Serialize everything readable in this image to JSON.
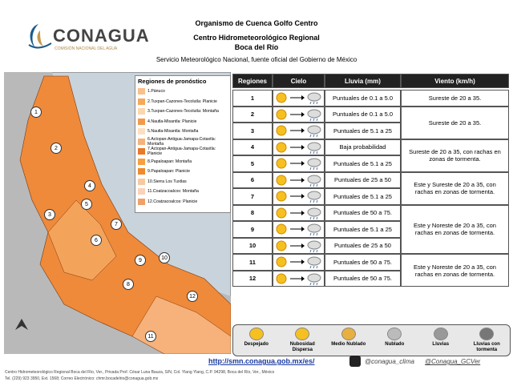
{
  "header": {
    "logo": "CONAGUA",
    "logo_sub": "COMISIÓN NACIONAL DEL AGUA",
    "org": "Organismo de Cuenca Golfo Centro",
    "center": "Centro Hidrometeorológico Regional",
    "place": "Boca del Río",
    "service": "Servicio Meteorológico Nacional, fuente oficial del Gobierno de México"
  },
  "map": {
    "legend_title": "Regiones de pronóstico",
    "legend": [
      {
        "label": "1.Pánuco",
        "color": "#f9c08a"
      },
      {
        "label": "2.Tuxpan-Cazones-Tecolutla: Planicie",
        "color": "#f7a85a"
      },
      {
        "label": "3.Tuxpan-Cazones-Tecolutla: Montaña",
        "color": "#fbd7b0"
      },
      {
        "label": "4.Nautla-Misantla: Planicie",
        "color": "#f39a4a"
      },
      {
        "label": "5.Nautla-Misantla: Montaña",
        "color": "#fce0c4"
      },
      {
        "label": "6.Actopan-Antigua-Jamapa-Cotaxtla: Montaña",
        "color": "#f5b27a"
      },
      {
        "label": "7.Actopan-Antigua-Jamapa-Cotaxtla: Planicie",
        "color": "#e8782a"
      },
      {
        "label": "8.Papaloapan: Montaña",
        "color": "#f6a040"
      },
      {
        "label": "9.Papaloapan: Planicie",
        "color": "#ee8a30"
      },
      {
        "label": "10.Sierra Los Tuxtlas",
        "color": "#f7c9a0"
      },
      {
        "label": "11.Coatzacoalcos: Montaña",
        "color": "#fad2b8"
      },
      {
        "label": "12.Coatzacoalcos: Planicie",
        "color": "#f0a068"
      }
    ],
    "region_labels": [
      "1",
      "2",
      "3",
      "4",
      "5",
      "6",
      "7",
      "8",
      "9",
      "10",
      "11",
      "12"
    ]
  },
  "table": {
    "headers": [
      "Regiones",
      "Cielo",
      "Lluvia (mm)",
      "Viento (km/h)"
    ],
    "rows": [
      {
        "region": "1",
        "rain": "Puntuales de 0.1 a 5.0",
        "wind": "Sureste de 20 a 35."
      },
      {
        "region": "2",
        "rain": "Puntuales de 0.1 a 5.0",
        "wind": "Sureste de 20 a 35."
      },
      {
        "region": "3",
        "rain": "Puntuales de 5.1 a 25",
        "wind": null
      },
      {
        "region": "4",
        "rain": "Baja probabilidad",
        "wind": "Sureste de 20 a 35, con rachas en zonas de tormenta."
      },
      {
        "region": "5",
        "rain": "Puntuales de 5.1 a 25",
        "wind": null
      },
      {
        "region": "6",
        "rain": "Puntuales de 25 a 50",
        "wind": "Este y Sureste de 20 a 35, con rachas en zonas de tormenta."
      },
      {
        "region": "7",
        "rain": "Puntuales de 5.1 a 25",
        "wind": null
      },
      {
        "region": "8",
        "rain": "Puntuales de 50 a 75.",
        "wind": "Este y Noreste de 20 a 35, con rachas en zonas de tormenta."
      },
      {
        "region": "9",
        "rain": "Puntuales de 5.1 a 25",
        "wind": null
      },
      {
        "region": "10",
        "rain": "Puntuales de 25 a 50",
        "wind": null
      },
      {
        "region": "11",
        "rain": "Puntuales de 50 a 75.",
        "wind": "Este y Noreste de 20 a 35, con rachas en zonas de tormenta."
      },
      {
        "region": "12",
        "rain": "Puntuales de 50 a 75.",
        "wind": null
      }
    ]
  },
  "sky_legend": [
    "Despejado",
    "Nubosidad Dispersa",
    "Medio Nublado",
    "Nublado",
    "Lluvias",
    "Lluvias con tormenta"
  ],
  "footer": {
    "url": "http://smn.conagua.gob.mx/es/",
    "twitter1": "@conagua_clima",
    "twitter2": "@Conagua_GCVer",
    "address": "Centro Hidrometeorológico Regional Boca del Río, Ver., Privada Prof. César Luna Bauza, S/N, Col. Ylang Ylang, C.P. 94298, Boca del Río, Ver., México",
    "contact": "Tel. (229) 923 3950, Ext. 1568; Correo Electrónico: chmr.bocadelrio@conagua.gob.mx"
  }
}
